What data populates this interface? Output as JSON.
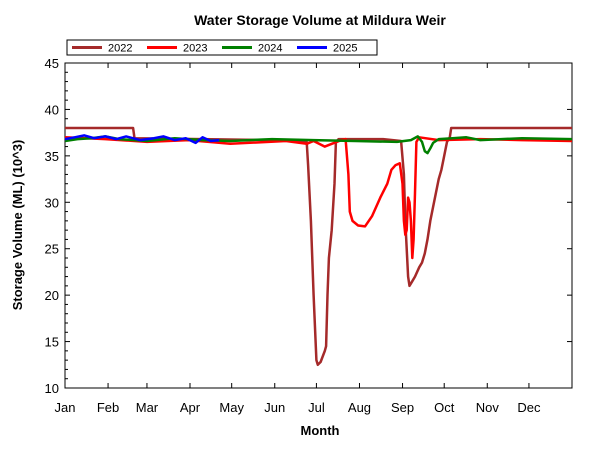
{
  "chart_data": {
    "type": "line",
    "title": "Water Storage Volume at Mildura Weir",
    "xlabel": "Month",
    "ylabel": "Storage Volume (ML) (10^3)",
    "x_ticks": [
      "Jan",
      "Feb",
      "Mar",
      "Apr",
      "May",
      "Jun",
      "Jul",
      "Aug",
      "Sep",
      "Oct",
      "Nov",
      "Dec"
    ],
    "x_unit": "day_of_year",
    "xlim": [
      1,
      366
    ],
    "ylim": [
      10,
      45
    ],
    "y_ticks": [
      10,
      15,
      20,
      25,
      30,
      35,
      40,
      45
    ],
    "grid": false,
    "legend_position": "top-left",
    "series": [
      {
        "name": "2022",
        "color": "#a52a2a",
        "points": [
          [
            1,
            38
          ],
          [
            50,
            38
          ],
          [
            51,
            36.9
          ],
          [
            100,
            36.8
          ],
          [
            150,
            36.7
          ],
          [
            170,
            36.6
          ],
          [
            175,
            36.5
          ],
          [
            176,
            34
          ],
          [
            178,
            28
          ],
          [
            180,
            20
          ],
          [
            182,
            13
          ],
          [
            183,
            12.5
          ],
          [
            185,
            12.8
          ],
          [
            188,
            14
          ],
          [
            189,
            14.5
          ],
          [
            190,
            20
          ],
          [
            191,
            24
          ],
          [
            193,
            27
          ],
          [
            195,
            32
          ],
          [
            196,
            36.5
          ],
          [
            198,
            36.8
          ],
          [
            230,
            36.8
          ],
          [
            243,
            36.6
          ],
          [
            245,
            33
          ],
          [
            246,
            28
          ],
          [
            248,
            22
          ],
          [
            249,
            21
          ],
          [
            251,
            21.5
          ],
          [
            253,
            22
          ],
          [
            256,
            23
          ],
          [
            258,
            23.5
          ],
          [
            260,
            24.5
          ],
          [
            262,
            26
          ],
          [
            264,
            28
          ],
          [
            266,
            29.5
          ],
          [
            268,
            31
          ],
          [
            270,
            32.5
          ],
          [
            272,
            33.5
          ],
          [
            274,
            35
          ],
          [
            276,
            36.5
          ],
          [
            278,
            37
          ],
          [
            279,
            38
          ],
          [
            366,
            38
          ]
        ]
      },
      {
        "name": "2023",
        "color": "#ff0000",
        "points": [
          [
            1,
            37
          ],
          [
            30,
            36.8
          ],
          [
            60,
            36.5
          ],
          [
            90,
            36.7
          ],
          [
            120,
            36.3
          ],
          [
            160,
            36.6
          ],
          [
            175,
            36.3
          ],
          [
            180,
            36.6
          ],
          [
            188,
            36
          ],
          [
            200,
            36.7
          ],
          [
            203,
            36.8
          ],
          [
            205,
            33
          ],
          [
            206,
            29
          ],
          [
            208,
            28
          ],
          [
            212,
            27.5
          ],
          [
            217,
            27.4
          ],
          [
            222,
            28.5
          ],
          [
            228,
            30.5
          ],
          [
            233,
            32
          ],
          [
            236,
            33.5
          ],
          [
            239,
            34
          ],
          [
            242,
            34.2
          ],
          [
            244,
            32
          ],
          [
            245,
            28
          ],
          [
            246,
            26.5
          ],
          [
            247,
            27
          ],
          [
            248,
            30.5
          ],
          [
            249,
            30
          ],
          [
            250,
            28
          ],
          [
            251,
            24
          ],
          [
            252,
            26
          ],
          [
            253,
            31
          ],
          [
            254,
            36.5
          ],
          [
            256,
            37
          ],
          [
            270,
            36.7
          ],
          [
            300,
            36.8
          ],
          [
            330,
            36.7
          ],
          [
            366,
            36.6
          ]
        ]
      },
      {
        "name": "2024",
        "color": "#008000",
        "points": [
          [
            1,
            36.6
          ],
          [
            10,
            36.8
          ],
          [
            20,
            36.9
          ],
          [
            30,
            37.1
          ],
          [
            40,
            36.8
          ],
          [
            60,
            36.6
          ],
          [
            80,
            36.9
          ],
          [
            100,
            36.7
          ],
          [
            120,
            36.6
          ],
          [
            150,
            36.8
          ],
          [
            180,
            36.7
          ],
          [
            210,
            36.6
          ],
          [
            240,
            36.5
          ],
          [
            250,
            36.7
          ],
          [
            255,
            37.1
          ],
          [
            258,
            36.5
          ],
          [
            260,
            35.5
          ],
          [
            262,
            35.3
          ],
          [
            264,
            35.8
          ],
          [
            266,
            36.4
          ],
          [
            270,
            36.8
          ],
          [
            280,
            36.9
          ],
          [
            290,
            37.0
          ],
          [
            300,
            36.7
          ],
          [
            330,
            36.9
          ],
          [
            366,
            36.8
          ]
        ]
      },
      {
        "name": "2025",
        "color": "#0000ff",
        "points": [
          [
            1,
            36.8
          ],
          [
            8,
            37.0
          ],
          [
            15,
            37.2
          ],
          [
            22,
            36.9
          ],
          [
            30,
            37.1
          ],
          [
            38,
            36.8
          ],
          [
            45,
            37.1
          ],
          [
            55,
            36.7
          ],
          [
            65,
            36.9
          ],
          [
            72,
            37.1
          ],
          [
            80,
            36.7
          ],
          [
            88,
            36.9
          ],
          [
            95,
            36.4
          ],
          [
            100,
            37.0
          ],
          [
            106,
            36.6
          ],
          [
            112,
            36.7
          ]
        ]
      }
    ]
  }
}
